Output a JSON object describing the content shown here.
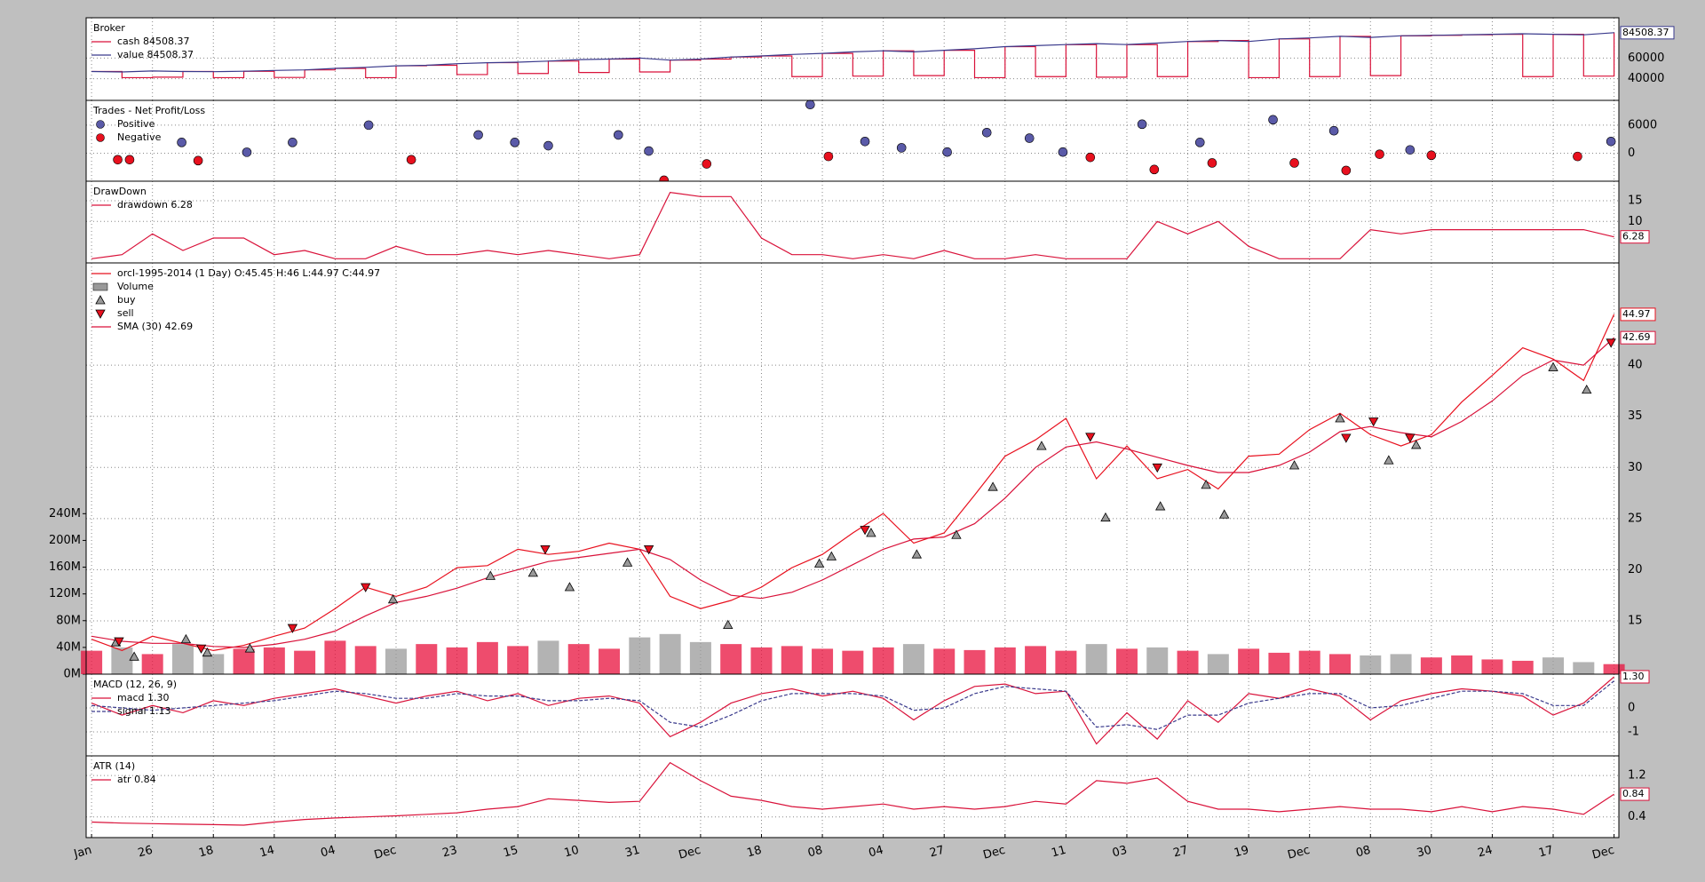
{
  "chart_data": [
    {
      "type": "line",
      "title": "Broker",
      "ylim": [
        19000,
        99000
      ],
      "yticks": [
        40000,
        60000
      ],
      "series": [
        {
          "name": "cash 84508.37",
          "color": "#d9123a",
          "style": "step",
          "values": [
            47000,
            41000,
            41500,
            47000,
            41000,
            47200,
            41200,
            48500,
            50000,
            41000,
            52500,
            53000,
            44000,
            55500,
            45000,
            57000,
            46000,
            59000,
            46500,
            58000,
            59000,
            61000,
            62000,
            42000,
            64500,
            42500,
            67000,
            43000,
            67500,
            41000,
            71000,
            42000,
            73000,
            41500,
            73000,
            42000,
            76000,
            77000,
            41000,
            78500,
            42000,
            81000,
            43000,
            81500,
            82000,
            82500,
            83000,
            42000,
            83000,
            42500,
            84508.37
          ]
        },
        {
          "name": "value 84508.37",
          "color": "#3a3a8c",
          "style": "line",
          "end_label": "84508.37",
          "values": [
            47000,
            46500,
            47500,
            47000,
            46800,
            47200,
            48000,
            48500,
            50000,
            51000,
            52500,
            53000,
            54500,
            55500,
            56000,
            57000,
            58500,
            59000,
            60000,
            58000,
            59000,
            61000,
            62000,
            63500,
            64500,
            66000,
            67000,
            66000,
            67500,
            69000,
            71000,
            72000,
            73000,
            74000,
            73000,
            74500,
            76000,
            77000,
            76000,
            78500,
            79500,
            81000,
            80000,
            81500,
            82000,
            82500,
            83000,
            83500,
            83000,
            82500,
            84508.37
          ]
        }
      ]
    },
    {
      "type": "scatter",
      "title": "Trades - Net Profit/Loss",
      "ylim": [
        -6000,
        11300
      ],
      "yticks": [
        0,
        6000
      ],
      "series": [
        {
          "name": "Positive",
          "color": "#5a5aa8",
          "x": [
            2.96,
            5.1,
            6.6,
            9.1,
            12.7,
            13.9,
            15,
            17.3,
            18.3,
            23.6,
            25.4,
            26.6,
            28.1,
            29.4,
            30.8,
            31.9,
            34.5,
            36.4,
            38.8,
            40.8,
            43.3,
            49.9
          ],
          "values": [
            2300,
            200,
            2300,
            6000,
            3900,
            2300,
            1600,
            3900,
            460,
            10400,
            2500,
            1150,
            230,
            4400,
            3200,
            230,
            6200,
            2300,
            7150,
            4800,
            700,
            2500
          ]
        },
        {
          "name": "Negative",
          "color": "#e8101e",
          "x": [
            0.86,
            1.25,
            3.5,
            10.5,
            18.8,
            20.2,
            24.2,
            32.8,
            34.9,
            36.8,
            39.5,
            41.2,
            42.3,
            44,
            48.8
          ],
          "values": [
            -1400,
            -1400,
            -1600,
            -1400,
            -5800,
            -2300,
            -700,
            -900,
            -3500,
            -2100,
            -2100,
            -3700,
            -230,
            -460,
            -700
          ]
        }
      ]
    },
    {
      "type": "line",
      "title": "DrawDown",
      "ylim": [
        0,
        19.7
      ],
      "yticks": [
        10,
        15
      ],
      "series": [
        {
          "name": "drawdown 6.28",
          "color": "#d9123a",
          "end_label": "6.28",
          "values": [
            1,
            2,
            7,
            3,
            6,
            6,
            2,
            3,
            1,
            1,
            4,
            2,
            2,
            3,
            2,
            3,
            2,
            1,
            2,
            17,
            16,
            16,
            6,
            2,
            2,
            1,
            2,
            1,
            3,
            1,
            1,
            2,
            1,
            1,
            1,
            10,
            7,
            10,
            4,
            1,
            1,
            1,
            8,
            7,
            8,
            8,
            8,
            8,
            8,
            8,
            6.28
          ]
        }
      ]
    },
    {
      "type": "line",
      "ylim": [
        9.79,
        50
      ],
      "yticks": [
        15,
        20,
        25,
        30,
        35,
        40
      ],
      "y2lim": [
        0,
        615000000
      ],
      "y2ticks": [
        {
          "value": 0,
          "label": "0M"
        },
        {
          "value": 40000000,
          "label": "40M"
        },
        {
          "value": 80000000,
          "label": "80M"
        },
        {
          "value": 120000000,
          "label": "120M"
        },
        {
          "value": 160000000,
          "label": "160M"
        },
        {
          "value": 200000000,
          "label": "200M"
        },
        {
          "value": 240000000,
          "label": "240M"
        }
      ],
      "series": [
        {
          "name": "orcl-1995-2014 (1 Day) O:45.45 H:46 L:44.97 C:44.97",
          "color": "#e8101e",
          "style": "line",
          "end_label": "44.97",
          "values": [
            13.2,
            12.1,
            13.5,
            12.8,
            12.1,
            12.6,
            13.5,
            14.3,
            16.2,
            18.3,
            17.4,
            18.3,
            20.2,
            20.4,
            22,
            21.5,
            21.8,
            22.6,
            22,
            17.4,
            16.2,
            17,
            18.3,
            20.2,
            21.5,
            23.6,
            25.5,
            22.6,
            23.6,
            27.3,
            31.1,
            32.7,
            34.8,
            28.9,
            32.1,
            28.9,
            29.8,
            27.9,
            31.1,
            31.3,
            33.7,
            35.3,
            33.2,
            32.1,
            33.2,
            36.4,
            39,
            41.7,
            40.6,
            38.5,
            44.97
          ]
        },
        {
          "name": "Volume",
          "color": "#e8103c",
          "down_color": "#999999",
          "style": "bar",
          "axis": "y2",
          "values": [
            35000000,
            40000000,
            30000000,
            45000000,
            30000000,
            38000000,
            40000000,
            35000000,
            50000000,
            42000000,
            38000000,
            45000000,
            40000000,
            48000000,
            42000000,
            50000000,
            45000000,
            38000000,
            55000000,
            60000000,
            48000000,
            45000000,
            40000000,
            42000000,
            38000000,
            35000000,
            40000000,
            45000000,
            38000000,
            36000000,
            40000000,
            42000000,
            35000000,
            45000000,
            38000000,
            40000000,
            35000000,
            30000000,
            38000000,
            32000000,
            35000000,
            30000000,
            28000000,
            30000000,
            25000000,
            28000000,
            22000000,
            20000000,
            25000000,
            18000000,
            15000000
          ]
        },
        {
          "name": "buy",
          "color": "#999999",
          "style": "buy",
          "x": [
            0.8,
            1.4,
            3.1,
            3.8,
            5.2,
            9.9,
            13.1,
            14.5,
            15.7,
            17.6,
            20.9,
            23.9,
            24.3,
            25.6,
            27.1,
            28.4,
            29.6,
            31.2,
            33.3,
            35.1,
            36.6,
            37.2,
            39.5,
            41,
            42.6,
            43.5,
            48,
            49.1
          ],
          "values": [
            12.9,
            11.5,
            13.2,
            11.9,
            12.3,
            17.1,
            19.4,
            19.7,
            18.3,
            20.7,
            14.6,
            20.6,
            21.3,
            23.6,
            21.5,
            23.4,
            28.1,
            32.1,
            25.1,
            26.2,
            28.3,
            25.4,
            30.2,
            34.8,
            30.7,
            32.2,
            39.8,
            37.6
          ]
        },
        {
          "name": "sell",
          "color": "#e8101e",
          "style": "sell",
          "x": [
            0.9,
            3.6,
            6.6,
            9,
            14.9,
            18.3,
            25.4,
            32.8,
            35,
            41.2,
            42.1,
            43.3,
            49.9
          ],
          "values": [
            13,
            12.3,
            14.3,
            18.3,
            22,
            22,
            23.9,
            33,
            30,
            32.9,
            34.5,
            32.9,
            42.2
          ]
        },
        {
          "name": "SMA (30) 42.69",
          "color": "#d9123a",
          "style": "line",
          "end_label": "42.69",
          "values": [
            13.5,
            13,
            12.8,
            12.8,
            12.5,
            12.4,
            12.7,
            13.2,
            14,
            15.5,
            16.8,
            17.4,
            18.2,
            19.2,
            20,
            20.8,
            21.2,
            21.6,
            22,
            21,
            19,
            17.5,
            17.2,
            17.8,
            19,
            20.5,
            22,
            23,
            23.2,
            24.5,
            27,
            30,
            32,
            32.5,
            31.8,
            31,
            30.2,
            29.5,
            29.5,
            30.2,
            31.5,
            33.5,
            34,
            33.4,
            33,
            34.5,
            36.5,
            39,
            40.5,
            40,
            42.69
          ]
        }
      ]
    },
    {
      "type": "line",
      "title": "MACD (12, 26, 9)",
      "ylim": [
        -2,
        1.41
      ],
      "yticks": [
        -1,
        0
      ],
      "series": [
        {
          "name": "macd 1.30",
          "color": "#d9123a",
          "end_label": "1.30",
          "values": [
            0.2,
            -0.3,
            0.1,
            -0.2,
            0.3,
            0.1,
            0.4,
            0.6,
            0.8,
            0.5,
            0.2,
            0.5,
            0.7,
            0.3,
            0.6,
            0.1,
            0.4,
            0.5,
            0.2,
            -1.2,
            -0.6,
            0.2,
            0.6,
            0.8,
            0.5,
            0.7,
            0.4,
            -0.5,
            0.3,
            0.9,
            1,
            0.6,
            0.7,
            -1.5,
            -0.2,
            -1.3,
            0.3,
            -0.6,
            0.6,
            0.4,
            0.8,
            0.5,
            -0.5,
            0.3,
            0.6,
            0.8,
            0.7,
            0.5,
            -0.3,
            0.2,
            1.3
          ]
        },
        {
          "name": "signal 1.13",
          "color": "#3a3a8c",
          "dash": true,
          "values": [
            0.1,
            0,
            -0.1,
            0,
            0.1,
            0.2,
            0.3,
            0.5,
            0.7,
            0.6,
            0.4,
            0.4,
            0.6,
            0.5,
            0.5,
            0.3,
            0.3,
            0.4,
            0.3,
            -0.6,
            -0.8,
            -0.3,
            0.3,
            0.6,
            0.6,
            0.6,
            0.5,
            -0.1,
            0,
            0.6,
            0.9,
            0.8,
            0.7,
            -0.8,
            -0.7,
            -0.9,
            -0.3,
            -0.3,
            0.2,
            0.4,
            0.6,
            0.6,
            0,
            0.1,
            0.4,
            0.7,
            0.7,
            0.6,
            0.1,
            0.1,
            1.13
          ]
        }
      ]
    },
    {
      "type": "line",
      "title": "ATR (14)",
      "ylim": [
        0,
        1.58
      ],
      "yticks": [
        0.4,
        1.2
      ],
      "categories": [
        "Jan",
        null,
        "26",
        null,
        "18",
        null,
        "14",
        null,
        "04",
        null,
        "Dec",
        null,
        "23",
        null,
        "15",
        null,
        "10",
        null,
        "31",
        null,
        "Dec",
        null,
        "18",
        null,
        "08",
        null,
        "04",
        null,
        "27",
        null,
        "Dec",
        null,
        "11",
        null,
        "03",
        null,
        "27",
        null,
        "19",
        null,
        "Dec",
        null,
        "08",
        null,
        "30",
        null,
        "24",
        null,
        "17",
        null,
        "Dec"
      ],
      "series": [
        {
          "name": "atr 0.84",
          "color": "#d9123a",
          "end_label": "0.84",
          "values": [
            0.3,
            0.28,
            0.27,
            0.26,
            0.25,
            0.24,
            0.3,
            0.35,
            0.38,
            0.4,
            0.42,
            0.45,
            0.48,
            0.55,
            0.6,
            0.75,
            0.72,
            0.68,
            0.7,
            1.45,
            1.1,
            0.8,
            0.72,
            0.6,
            0.55,
            0.6,
            0.65,
            0.55,
            0.6,
            0.55,
            0.6,
            0.7,
            0.65,
            1.1,
            1.05,
            1.15,
            0.7,
            0.55,
            0.55,
            0.5,
            0.55,
            0.6,
            0.55,
            0.55,
            0.5,
            0.6,
            0.5,
            0.6,
            0.55,
            0.45,
            0.84
          ]
        }
      ]
    }
  ]
}
